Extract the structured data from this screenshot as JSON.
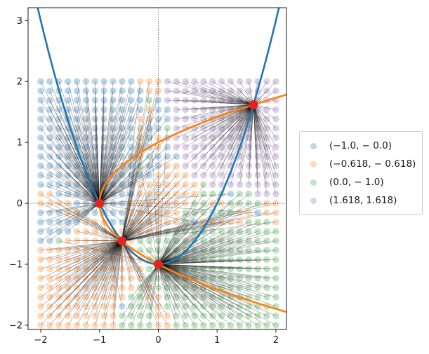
{
  "chart_data": {
    "type": "scatter",
    "title": "",
    "description": "Basins of attraction of Newton's method for the intersection points of the parabolas y = x^2 - 1 (blue curve) and x = y^2 - 1 (orange curve). Each point of a 27x27 grid over [-2,2]x[-2,2] is drawn as a pastel dot colored by the attractor (red dot) it converges to, with a straight black line connecting the attractor to the grid point.",
    "xlim": [
      -2.215,
      2.18
    ],
    "ylim": [
      -2.07,
      3.21
    ],
    "xticks": {
      "values": [
        -2,
        -1,
        0,
        1,
        2
      ],
      "labels": [
        "−2",
        "−1",
        "0",
        "1",
        "2"
      ]
    },
    "yticks": {
      "values": [
        -2,
        -1,
        0,
        1,
        2,
        3
      ],
      "labels": [
        "−2",
        "−1",
        "0",
        "1",
        "2",
        "3"
      ]
    },
    "grid": {
      "x_min": -2,
      "x_max": 2,
      "y_min": -2,
      "y_max": 2,
      "n": 27
    },
    "zero_lines": {
      "x": 0,
      "y": 0,
      "style": "dotted",
      "color": "#333333"
    },
    "iteration": "newton",
    "system": [
      "y - x^2 + 1 = 0",
      "x - y^2 + 1 = 0"
    ],
    "attractors": [
      {
        "x": -1.0,
        "y": 0.0,
        "label": "(−1.0, − 0.0)",
        "base_color": "#1f77b4",
        "fill": "#bcd6e9"
      },
      {
        "x": -0.6180339887,
        "y": -0.6180339887,
        "label": "(−0.618, − 0.618)",
        "base_color": "#ff7f0e",
        "fill": "#ffd9b7"
      },
      {
        "x": 0.0,
        "y": -1.0,
        "label": "(0.0, − 1.0)",
        "base_color": "#2ca02c",
        "fill": "#c0e3c0"
      },
      {
        "x": 1.6180339887,
        "y": 1.6180339887,
        "label": "(1.618, 1.618)",
        "base_color": "#9467bd",
        "fill": "#ded1eb"
      }
    ],
    "attractor_marker_color": "#e02622",
    "trajectory_line_color": "#000000",
    "curves": [
      {
        "id": "blue-parabola",
        "equation": "y = x² − 1",
        "orientation": "vertical",
        "color": "#1f77b4"
      },
      {
        "id": "orange-parabola",
        "equation": "x = y² − 1",
        "orientation": "horizontal",
        "color": "#ff7f0e"
      }
    ],
    "legend": {
      "items": [
        {
          "label": "(−1.0, − 0.0)"
        },
        {
          "label": "(−0.618, − 0.618)"
        },
        {
          "label": "(0.0, − 1.0)"
        },
        {
          "label": "(1.618, 1.618)"
        }
      ]
    }
  }
}
